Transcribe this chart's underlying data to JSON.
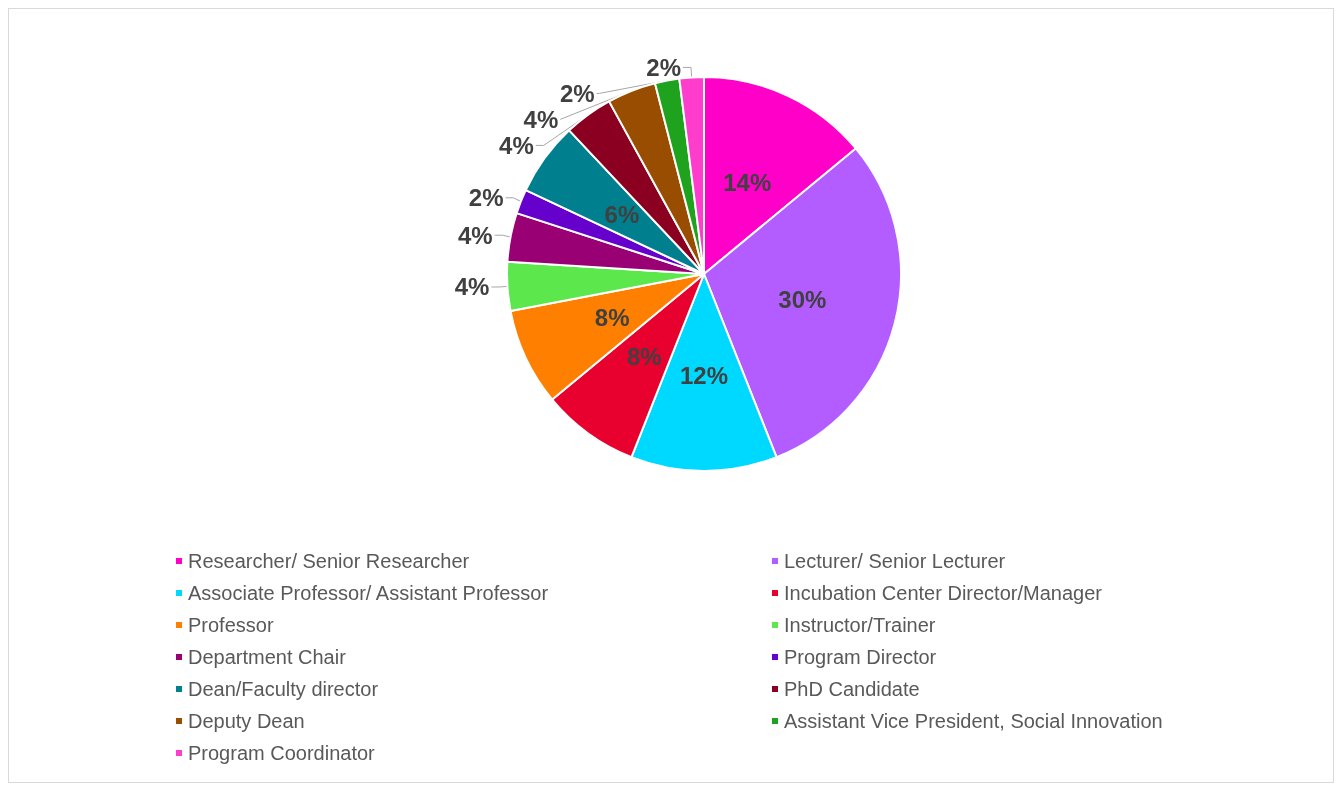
{
  "chart_data": {
    "type": "pie",
    "categories": [
      "Researcher/ Senior Researcher",
      "Lecturer/ Senior Lecturer",
      "Associate Professor/ Assistant Professor",
      "Incubation Center Director/Manager",
      "Professor",
      "Instructor/Trainer",
      "Department Chair",
      "Program Director",
      "Dean/Faculty director",
      "PhD Candidate",
      "Deputy Dean",
      "Assistant Vice President, Social Innovation",
      "Program Coordinator"
    ],
    "values": [
      14,
      30,
      12,
      8,
      8,
      4,
      4,
      2,
      6,
      4,
      4,
      2,
      2
    ],
    "value_labels": [
      "14%",
      "30%",
      "12%",
      "8%",
      "8%",
      "4%",
      "4%",
      "2%",
      "6%",
      "4%",
      "4%",
      "2%",
      "2%"
    ],
    "colors": [
      "#ff00c8",
      "#b35cff",
      "#00d9ff",
      "#e8002f",
      "#ff8000",
      "#5ce84d",
      "#990073",
      "#6600cc",
      "#00808f",
      "#8b0020",
      "#994d00",
      "#1fa31f",
      "#ff3dcc"
    ],
    "legend": "bottom"
  }
}
